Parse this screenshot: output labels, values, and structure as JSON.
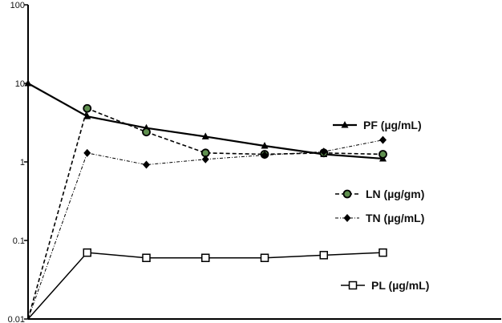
{
  "chart_data": {
    "type": "line",
    "yscale": "log",
    "ylim": [
      0.01,
      100
    ],
    "y_ticks": [
      "100",
      "10",
      "1",
      "0.1",
      "0.01"
    ],
    "y_tick_values": [
      100,
      10,
      1,
      0.1,
      0.01
    ],
    "x": [
      0,
      1,
      2,
      3,
      4,
      5,
      6
    ],
    "xlim": [
      0,
      8
    ],
    "grid": false,
    "legend_position": "right",
    "series": [
      {
        "name": "PF (µg/mL)",
        "marker": "triangle",
        "line": "solid-thick",
        "values": [
          10,
          3.8,
          2.7,
          2.1,
          1.6,
          1.25,
          1.1
        ]
      },
      {
        "name": "LN (µg/gm)",
        "marker": "circle-green",
        "line": "dashed",
        "values": [
          0.01,
          4.8,
          2.4,
          1.3,
          1.25,
          1.3,
          1.25
        ]
      },
      {
        "name": "TN (µg/mL)",
        "marker": "diamond",
        "line": "dashdot",
        "values": [
          0.01,
          1.3,
          0.92,
          1.08,
          1.22,
          1.35,
          1.9
        ]
      },
      {
        "name": "PL (µg/mL)",
        "marker": "square-open",
        "line": "solid",
        "values": [
          0.01,
          0.07,
          0.06,
          0.06,
          0.06,
          0.065,
          0.07
        ]
      }
    ]
  }
}
